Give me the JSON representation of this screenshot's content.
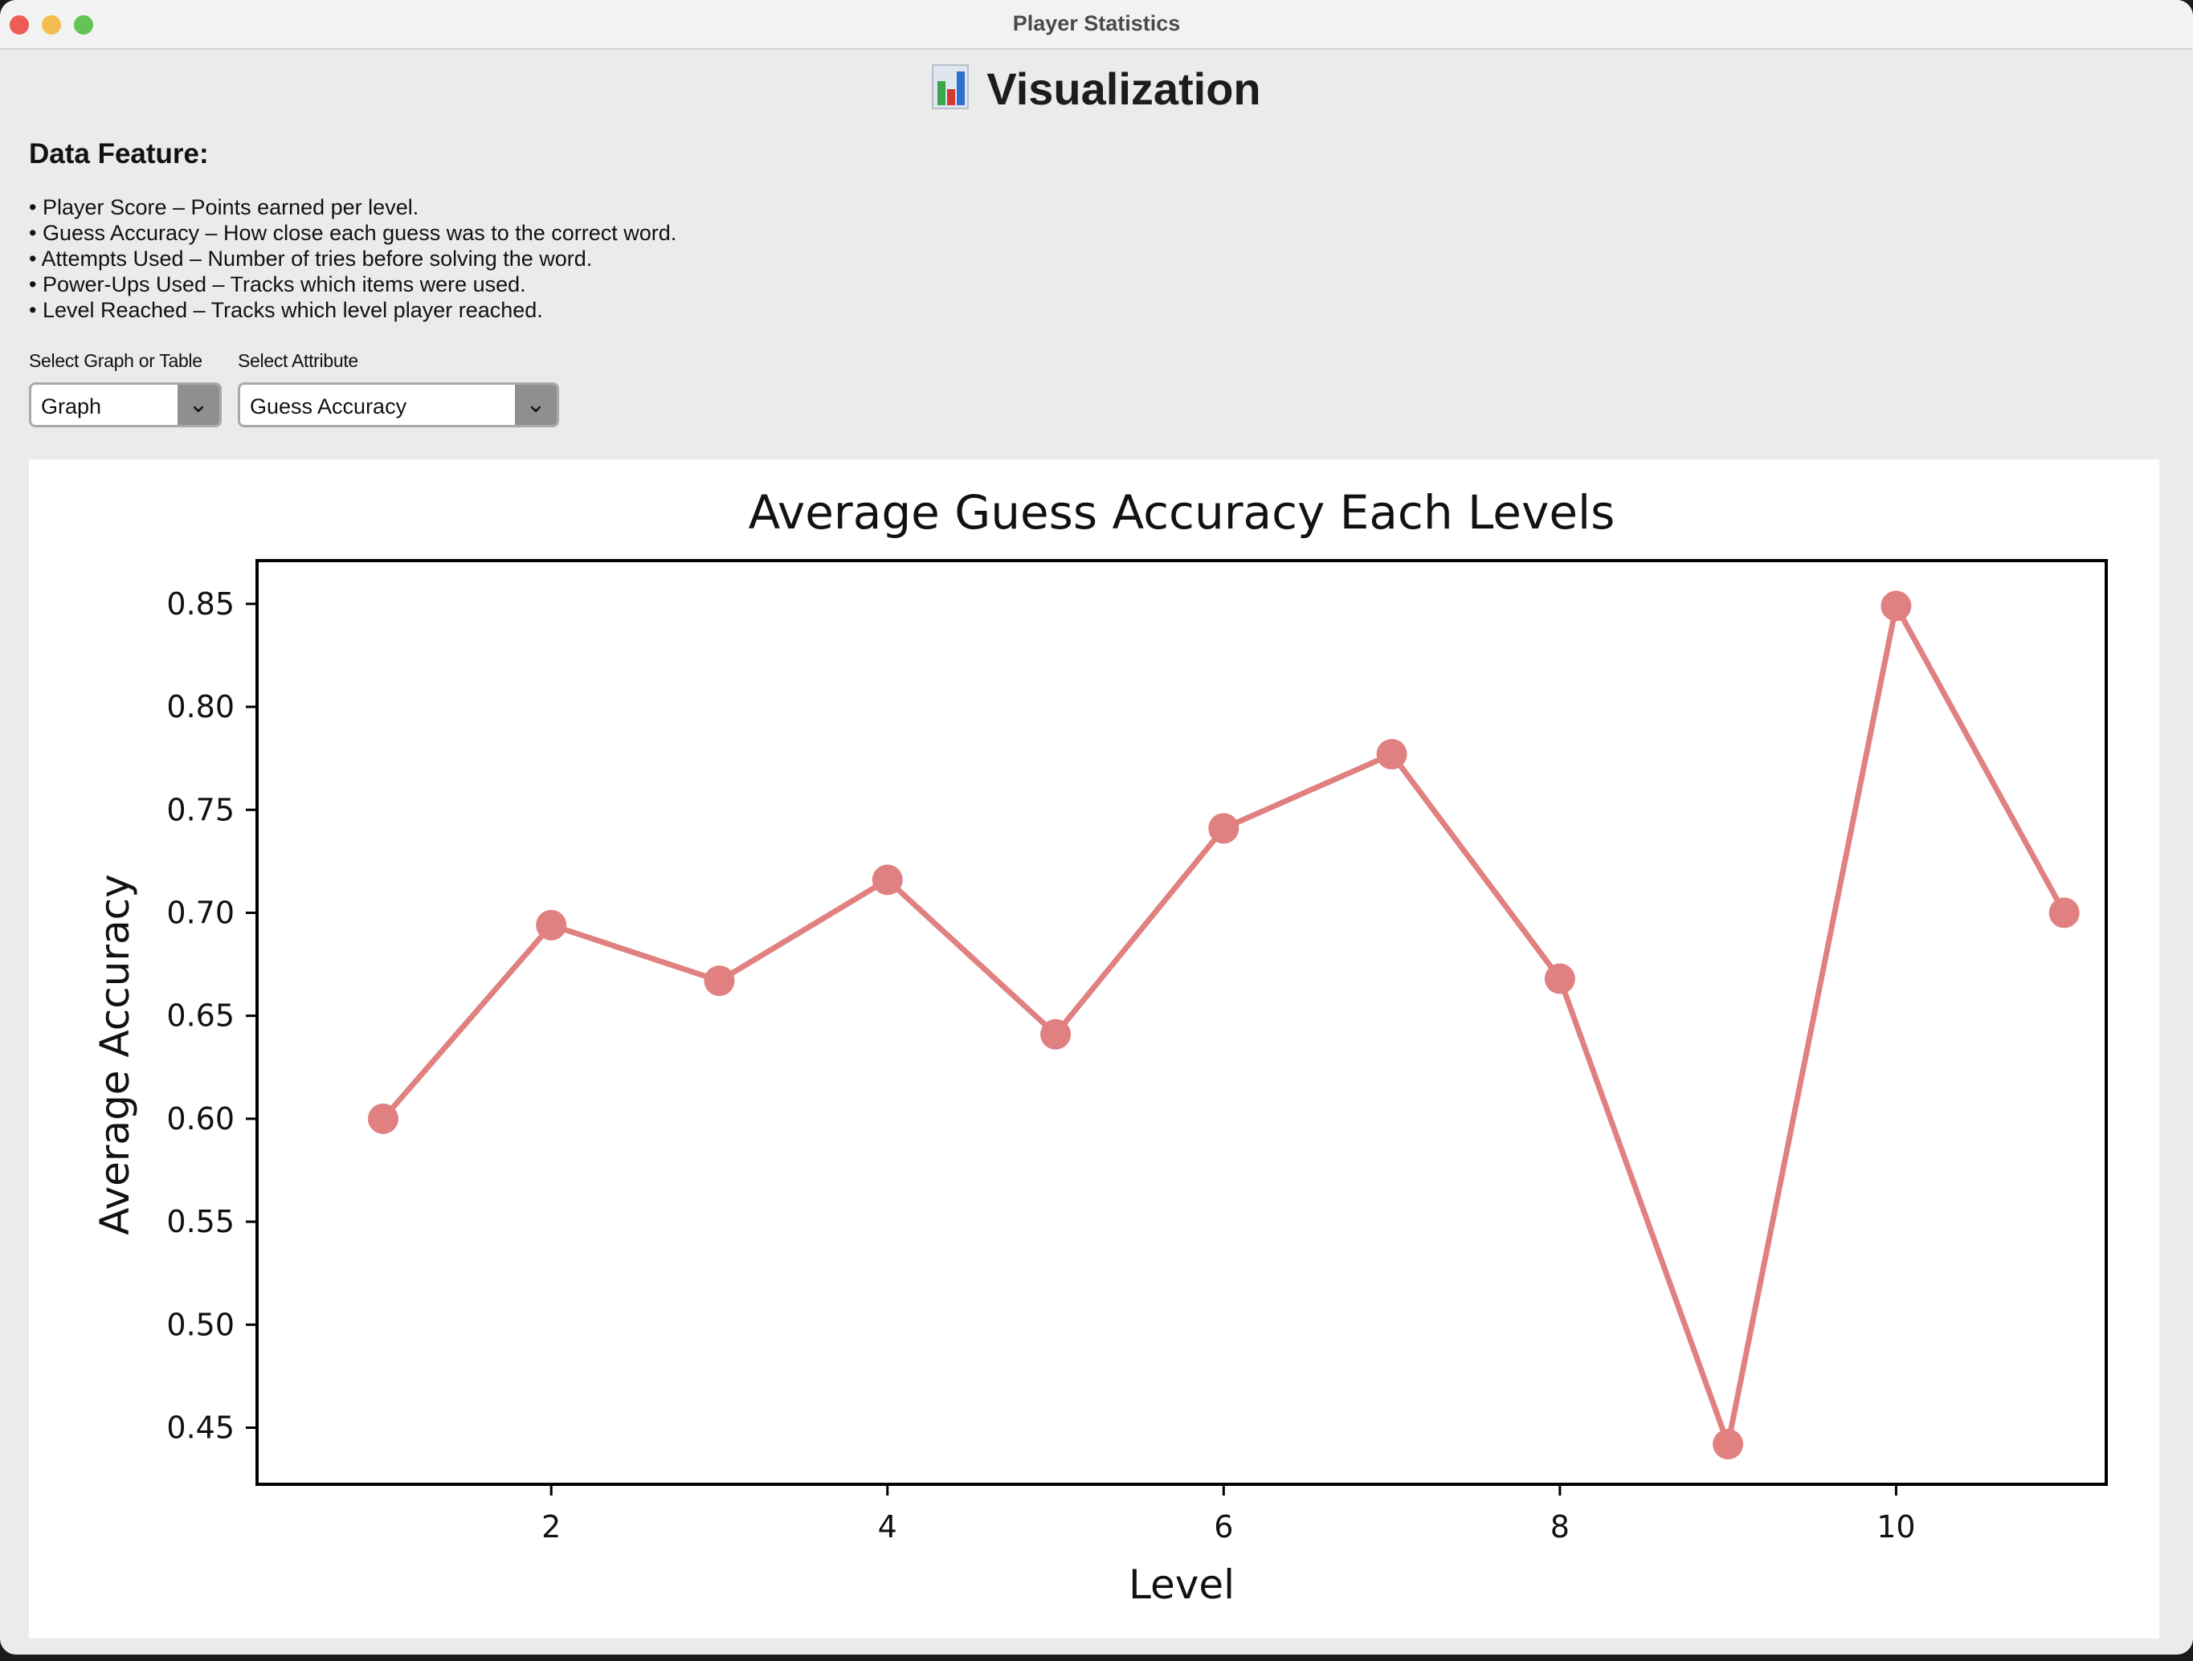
{
  "window": {
    "title": "Player Statistics"
  },
  "header": {
    "title": "Visualization",
    "icon": "bar-chart-icon"
  },
  "features": {
    "title": "Data Feature:",
    "items": [
      "• Player Score – Points earned per level.",
      "• Guess Accuracy – How close each guess was to the correct word.",
      "• Attempts Used – Number of tries before solving the word.",
      "• Power-Ups Used – Tracks which items were used.",
      "• Level Reached – Tracks which level player reached."
    ]
  },
  "controls": {
    "graph_table_label": "Select Graph or Table",
    "graph_table_value": "Graph",
    "attribute_label": "Select Attribute",
    "attribute_value": "Guess Accuracy",
    "dropdown_icon": "chevron-down-icon"
  },
  "colors": {
    "series": "#e08080",
    "background": "#ebebeb"
  },
  "chart_data": {
    "type": "line",
    "title": "Average Guess Accuracy Each Levels",
    "xlabel": "Level",
    "ylabel": "Average Accuracy",
    "x": [
      1,
      2,
      3,
      4,
      5,
      6,
      7,
      8,
      9,
      10,
      11
    ],
    "y": [
      0.6,
      0.694,
      0.667,
      0.716,
      0.641,
      0.741,
      0.777,
      0.668,
      0.442,
      0.849,
      0.7
    ],
    "xlim": [
      0.25,
      11.25
    ],
    "ylim": [
      0.4225,
      0.871
    ],
    "xticks": [
      2,
      4,
      6,
      8,
      10
    ],
    "yticks": [
      0.45,
      0.5,
      0.55,
      0.6,
      0.65,
      0.7,
      0.75,
      0.8,
      0.85
    ],
    "ytick_labels": [
      "0.45",
      "0.50",
      "0.55",
      "0.60",
      "0.65",
      "0.70",
      "0.75",
      "0.80",
      "0.85"
    ],
    "grid": false,
    "marker": "circle"
  }
}
